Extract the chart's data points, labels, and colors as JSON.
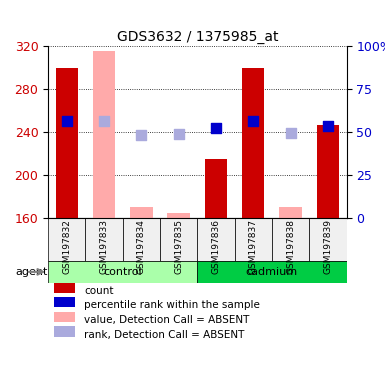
{
  "title": "GDS3632 / 1375985_at",
  "samples": [
    "GSM197832",
    "GSM197833",
    "GSM197834",
    "GSM197835",
    "GSM197836",
    "GSM197837",
    "GSM197838",
    "GSM197839"
  ],
  "groups": [
    "control",
    "control",
    "control",
    "control",
    "cadmium",
    "cadmium",
    "cadmium",
    "cadmium"
  ],
  "ylim_left": [
    160,
    320
  ],
  "ylim_right": [
    0,
    100
  ],
  "yticks_left": [
    160,
    200,
    240,
    280,
    320
  ],
  "yticks_right": [
    0,
    25,
    50,
    75,
    100
  ],
  "ytick_labels_right": [
    "0",
    "25",
    "50",
    "75",
    "100%"
  ],
  "count_bars": {
    "present": [
      1,
      3,
      5,
      7
    ],
    "absent": [
      0,
      1,
      2,
      3,
      4,
      5,
      6,
      7
    ],
    "values_present_idx": [
      0,
      4,
      5,
      7
    ],
    "values_present": [
      300,
      215,
      300,
      247
    ],
    "values_absent_idx": [
      1,
      2,
      3,
      6
    ],
    "values_absent": [
      315,
      170,
      165,
      170
    ]
  },
  "red_bar_values": [
    300,
    null,
    null,
    null,
    215,
    300,
    null,
    247
  ],
  "pink_bar_values": [
    null,
    315,
    170,
    165,
    null,
    null,
    170,
    null
  ],
  "blue_dot_values": [
    250,
    null,
    null,
    null,
    244,
    250,
    null,
    246
  ],
  "lavender_dot_values": [
    null,
    250,
    237,
    238,
    null,
    null,
    239,
    null
  ],
  "red_color": "#cc0000",
  "pink_color": "#ffaaaa",
  "blue_color": "#0000cc",
  "lavender_color": "#aaaadd",
  "bg_color": "#f0f0f0",
  "control_color": "#aaffaa",
  "cadmium_color": "#00cc44",
  "bar_width": 0.6,
  "dot_size": 60,
  "legend_items": [
    {
      "label": "count",
      "color": "#cc0000",
      "marker": "s"
    },
    {
      "label": "percentile rank within the sample",
      "color": "#0000cc",
      "marker": "s"
    },
    {
      "label": "value, Detection Call = ABSENT",
      "color": "#ffaaaa",
      "marker": "s"
    },
    {
      "label": "rank, Detection Call = ABSENT",
      "color": "#aaaadd",
      "marker": "s"
    }
  ]
}
